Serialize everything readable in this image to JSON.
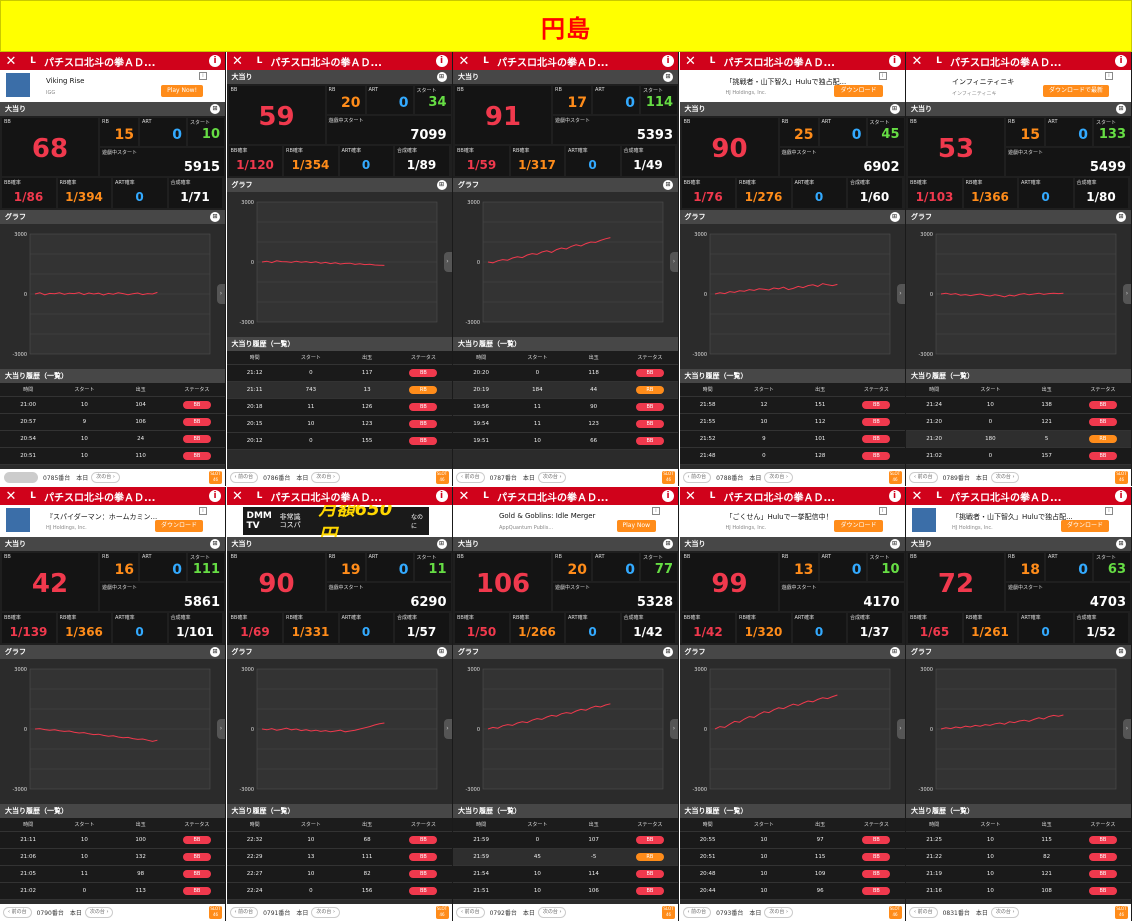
{
  "banner": {
    "title": "円島"
  },
  "common": {
    "close": "✕",
    "l_label": "L",
    "info": "i",
    "sec_bonus": "大当り",
    "sec_graph": "グラフ",
    "sec_history": "大当り履歴（一覧）",
    "label_bb": "BB",
    "label_rb": "RB",
    "label_art": "ART",
    "label_start": "スタート",
    "label_cur_start": "遊戯中スタート",
    "label_bb_rate": "BB確率",
    "label_rb_rate": "RB確率",
    "label_art_rate": "ART確率",
    "label_total_rate": "合成確率",
    "col_time": "時間",
    "col_start": "スタート",
    "col_out": "出玉",
    "col_status": "ステータス",
    "y_top": "3000",
    "y_mid": "0",
    "y_bot": "-3000",
    "prev": "‹ 前の台",
    "next": "次の台 ›",
    "today": "本日",
    "footer_icon": "SLOT 46",
    "colors": {
      "red": "#f0394d",
      "orange": "#ff8c1a",
      "blue": "#33aaff",
      "green": "#66dd44",
      "header": "#d0021b",
      "banner": "#ffff00"
    }
  },
  "panels": [
    {
      "title": "パチスロ北斗の拳ＡＤ...",
      "ad": {
        "kind": "app",
        "title": "Viking Rise",
        "sub": "IGG",
        "button": "Play Now!"
      },
      "bb": "68",
      "rb": "15",
      "art": "0",
      "start": "10",
      "cur_start": "5915",
      "bb_rate": "1/86",
      "rb_rate": "1/394",
      "art_rate": "0",
      "total_rate": "1/71",
      "graph": [
        0,
        60,
        -40,
        30,
        10,
        60,
        -20,
        40,
        20,
        70,
        -30,
        50,
        0,
        40,
        -50,
        30,
        -10,
        60,
        20,
        -40,
        10,
        50,
        -30,
        20,
        0,
        80
      ],
      "history": [
        [
          "21:00",
          "10",
          "104",
          "BB"
        ],
        [
          "20:57",
          "9",
          "106",
          "BB"
        ],
        [
          "20:54",
          "10",
          "24",
          "BB"
        ],
        [
          "20:51",
          "10",
          "110",
          "BB"
        ]
      ],
      "machine": "0785番台",
      "footer_prev": false
    },
    {
      "title": "パチスロ北斗の拳ＡＤ...",
      "ad": {
        "kind": "none"
      },
      "bb": "59",
      "rb": "20",
      "art": "0",
      "start": "34",
      "cur_start": "7099",
      "bb_rate": "1/120",
      "rb_rate": "1/354",
      "art_rate": "0",
      "total_rate": "1/89",
      "graph": [
        0,
        40,
        -30,
        60,
        20,
        10,
        -20,
        40,
        -10,
        20,
        -30,
        10,
        -60,
        -20,
        -80,
        -40,
        -100,
        -70,
        -60,
        -120,
        -90,
        -130,
        -110,
        -150,
        -160,
        -170
      ],
      "history": [
        [
          "21:12",
          "0",
          "117",
          "BB"
        ],
        [
          "21:11",
          "743",
          "13",
          "RB"
        ],
        [
          "20:18",
          "11",
          "126",
          "BB"
        ],
        [
          "20:15",
          "10",
          "123",
          "BB"
        ],
        [
          "20:12",
          "0",
          "155",
          "BB"
        ]
      ],
      "machine": "0786番台",
      "footer_prev": true
    },
    {
      "title": "パチスロ北斗の拳ＡＤ...",
      "ad": {
        "kind": "none"
      },
      "bb": "91",
      "rb": "17",
      "art": "0",
      "start": "114",
      "cur_start": "5393",
      "bb_rate": "1/59",
      "rb_rate": "1/317",
      "art_rate": "0",
      "total_rate": "1/49",
      "graph": [
        0,
        -40,
        60,
        120,
        90,
        200,
        260,
        220,
        350,
        420,
        380,
        500,
        560,
        480,
        620,
        700,
        650,
        780,
        860,
        800,
        920,
        1000,
        980,
        1080,
        1160,
        1220
      ],
      "history": [
        [
          "20:20",
          "0",
          "118",
          "BB"
        ],
        [
          "20:19",
          "184",
          "44",
          "RB"
        ],
        [
          "19:56",
          "11",
          "90",
          "BB"
        ],
        [
          "19:54",
          "11",
          "123",
          "BB"
        ],
        [
          "19:51",
          "10",
          "66",
          "BB"
        ]
      ],
      "machine": "0787番台",
      "footer_prev": true
    },
    {
      "title": "パチスロ北斗の拳ＡＤ...",
      "ad": {
        "kind": "app",
        "title": "「挑戦者・山下智久」Huluで独占配...",
        "sub": "HJ Holdings, Inc.",
        "button": "ダウンロード"
      },
      "bb": "90",
      "rb": "25",
      "art": "0",
      "start": "45",
      "cur_start": "6902",
      "bb_rate": "1/76",
      "rb_rate": "1/276",
      "art_rate": "0",
      "total_rate": "1/60",
      "graph": [
        0,
        60,
        20,
        120,
        80,
        160,
        140,
        220,
        180,
        260,
        240,
        200,
        300,
        260,
        340,
        220,
        280,
        380,
        320,
        420,
        460,
        380,
        520,
        460,
        420,
        480
      ],
      "history": [
        [
          "21:58",
          "12",
          "151",
          "BB"
        ],
        [
          "21:55",
          "10",
          "112",
          "BB"
        ],
        [
          "21:52",
          "9",
          "101",
          "BB"
        ],
        [
          "21:48",
          "0",
          "128",
          "BB"
        ]
      ],
      "machine": "0788番台",
      "footer_prev": true
    },
    {
      "title": "パチスロ北斗の拳ＡＤ...",
      "ad": {
        "kind": "app",
        "title": "インフィニティニキ",
        "sub": "インフィニティニキ",
        "button": "ダウンロードで最新"
      },
      "bb": "53",
      "rb": "15",
      "art": "0",
      "start": "133",
      "cur_start": "5499",
      "bb_rate": "1/103",
      "rb_rate": "1/366",
      "art_rate": "0",
      "total_rate": "1/80",
      "graph": [
        0,
        40,
        -20,
        20,
        -60,
        -30,
        -80,
        -40,
        0,
        -60,
        -100,
        -40,
        -80,
        -140,
        -60,
        -100,
        -20,
        20,
        -40,
        0,
        40,
        -20,
        20,
        40,
        20,
        40
      ],
      "history": [
        [
          "21:24",
          "10",
          "138",
          "BB"
        ],
        [
          "21:20",
          "0",
          "121",
          "BB"
        ],
        [
          "21:20",
          "180",
          "5",
          "RB"
        ],
        [
          "21:02",
          "0",
          "157",
          "BB"
        ]
      ],
      "machine": "0789番台",
      "footer_prev": true
    },
    {
      "title": "パチスロ北斗の拳ＡＤ...",
      "ad": {
        "kind": "app",
        "title": "『スパイダーマン：ホームカミン...",
        "sub": "HJ Holdings, Inc.",
        "button": "ダウンロード"
      },
      "bb": "42",
      "rb": "16",
      "art": "0",
      "start": "111",
      "cur_start": "5861",
      "bb_rate": "1/139",
      "rb_rate": "1/366",
      "art_rate": "0",
      "total_rate": "1/101",
      "graph": [
        0,
        20,
        -30,
        -60,
        -40,
        -90,
        -120,
        -100,
        -160,
        -200,
        -180,
        -240,
        -280,
        -260,
        -320,
        -360,
        -340,
        -400,
        -440,
        -420,
        -480,
        -520,
        -500,
        -560,
        -620,
        -560
      ],
      "history": [
        [
          "21:11",
          "10",
          "100",
          "BB"
        ],
        [
          "21:06",
          "10",
          "132",
          "BB"
        ],
        [
          "21:05",
          "11",
          "98",
          "BB"
        ],
        [
          "21:02",
          "0",
          "113",
          "BB"
        ]
      ],
      "machine": "0790番台",
      "footer_prev": true
    },
    {
      "title": "パチスロ北斗の拳ＡＤ...",
      "ad": {
        "kind": "dmm",
        "brand": "DMM TV",
        "text1": "非常識",
        "text2": "コスパ",
        "price": "月額650円",
        "tail": "なのに"
      },
      "bb": "90",
      "rb": "19",
      "art": "0",
      "start": "11",
      "cur_start": "6290",
      "bb_rate": "1/69",
      "rb_rate": "1/331",
      "art_rate": "0",
      "total_rate": "1/57",
      "graph": [
        0,
        -40,
        20,
        -60,
        -20,
        40,
        -40,
        0,
        -80,
        -40,
        -100,
        -60,
        -120,
        -80,
        -140,
        -100,
        -60,
        -140,
        -100,
        -60,
        0,
        60,
        120,
        200,
        260,
        300
      ],
      "history": [
        [
          "22:32",
          "10",
          "68",
          "BB"
        ],
        [
          "22:29",
          "13",
          "111",
          "BB"
        ],
        [
          "22:27",
          "10",
          "82",
          "BB"
        ],
        [
          "22:24",
          "0",
          "156",
          "BB"
        ]
      ],
      "machine": "0791番台",
      "footer_prev": true
    },
    {
      "title": "パチスロ北斗の拳ＡＤ...",
      "ad": {
        "kind": "app",
        "title": "Gold & Goblins: Idle Merger",
        "sub": "AppQuantum Publis...",
        "button": "Play Now"
      },
      "bb": "106",
      "rb": "20",
      "art": "0",
      "start": "77",
      "cur_start": "5328",
      "bb_rate": "1/50",
      "rb_rate": "1/266",
      "art_rate": "0",
      "total_rate": "1/42",
      "graph": [
        0,
        80,
        40,
        160,
        220,
        180,
        300,
        360,
        320,
        440,
        520,
        480,
        600,
        680,
        640,
        760,
        820,
        780,
        900,
        980,
        940,
        1060,
        1140,
        1100,
        1200,
        1260
      ],
      "history": [
        [
          "21:59",
          "0",
          "107",
          "BB"
        ],
        [
          "21:59",
          "45",
          "-5",
          "RB"
        ],
        [
          "21:54",
          "10",
          "114",
          "BB"
        ],
        [
          "21:51",
          "10",
          "106",
          "BB"
        ]
      ],
      "machine": "0792番台",
      "footer_prev": true
    },
    {
      "title": "パチスロ北斗の拳ＡＤ...",
      "ad": {
        "kind": "app",
        "title": "「ごくせん」Huluで一挙配信中！",
        "sub": "HJ Holdings, Inc.",
        "button": "ダウンロード"
      },
      "bb": "99",
      "rb": "13",
      "art": "0",
      "start": "10",
      "cur_start": "4170",
      "bb_rate": "1/42",
      "rb_rate": "1/320",
      "art_rate": "0",
      "total_rate": "1/37",
      "graph": [
        0,
        120,
        80,
        240,
        380,
        340,
        500,
        620,
        580,
        740,
        860,
        820,
        960,
        1060,
        1020,
        1140,
        1240,
        1180,
        1300,
        1400,
        1360,
        1480,
        1560,
        1520,
        1620,
        1700
      ],
      "history": [
        [
          "20:55",
          "10",
          "97",
          "BB"
        ],
        [
          "20:51",
          "10",
          "115",
          "BB"
        ],
        [
          "20:48",
          "10",
          "109",
          "BB"
        ],
        [
          "20:44",
          "10",
          "96",
          "BB"
        ]
      ],
      "machine": "0793番台",
      "footer_prev": true
    },
    {
      "title": "パチスロ北斗の拳ＡＤ...",
      "ad": {
        "kind": "app",
        "title": "「挑戦者・山下智久」Huluで独占配...",
        "sub": "HJ Holdings, Inc.",
        "button": "ダウンロード"
      },
      "bb": "72",
      "rb": "18",
      "art": "0",
      "start": "63",
      "cur_start": "4703",
      "bb_rate": "1/65",
      "rb_rate": "1/261",
      "art_rate": "0",
      "total_rate": "1/52",
      "graph": [
        0,
        60,
        20,
        100,
        60,
        140,
        100,
        180,
        140,
        220,
        180,
        260,
        300,
        240,
        360,
        320,
        400,
        440,
        380,
        480,
        560,
        500,
        620,
        680,
        640,
        700
      ],
      "history": [
        [
          "21:25",
          "10",
          "115",
          "BB"
        ],
        [
          "21:22",
          "10",
          "82",
          "BB"
        ],
        [
          "21:19",
          "10",
          "121",
          "BB"
        ],
        [
          "21:16",
          "10",
          "108",
          "BB"
        ]
      ],
      "machine": "0831番台",
      "footer_prev": true
    }
  ]
}
